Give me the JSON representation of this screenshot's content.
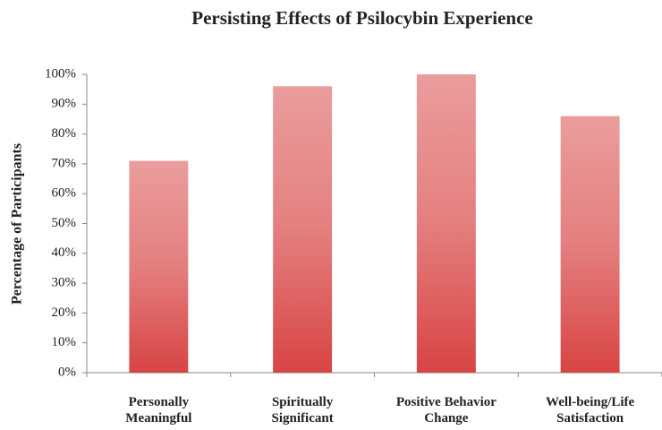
{
  "chart_data": {
    "type": "bar",
    "title": "Persisting Effects of Psilocybin Experience",
    "ylabel": "Percentage of Participants",
    "categories": [
      "Personally Meaningful",
      "Spiritually Significant",
      "Positive Behavior Change",
      "Well-being/Life Satisfaction"
    ],
    "values": [
      71,
      96,
      100,
      86
    ],
    "color": "#d63a3a",
    "ylim": [
      0,
      100
    ],
    "yticks": [
      {
        "value": 0,
        "label": "0%"
      },
      {
        "value": 10,
        "label": "10%"
      },
      {
        "value": 20,
        "label": "20%"
      },
      {
        "value": 30,
        "label": "30%"
      },
      {
        "value": 40,
        "label": "40%"
      },
      {
        "value": 50,
        "label": "50%"
      },
      {
        "value": 60,
        "label": "60%"
      },
      {
        "value": 70,
        "label": "70%"
      },
      {
        "value": 80,
        "label": "80%"
      },
      {
        "value": 90,
        "label": "90%"
      },
      {
        "value": 100,
        "label": "100%"
      }
    ],
    "grid": false
  }
}
